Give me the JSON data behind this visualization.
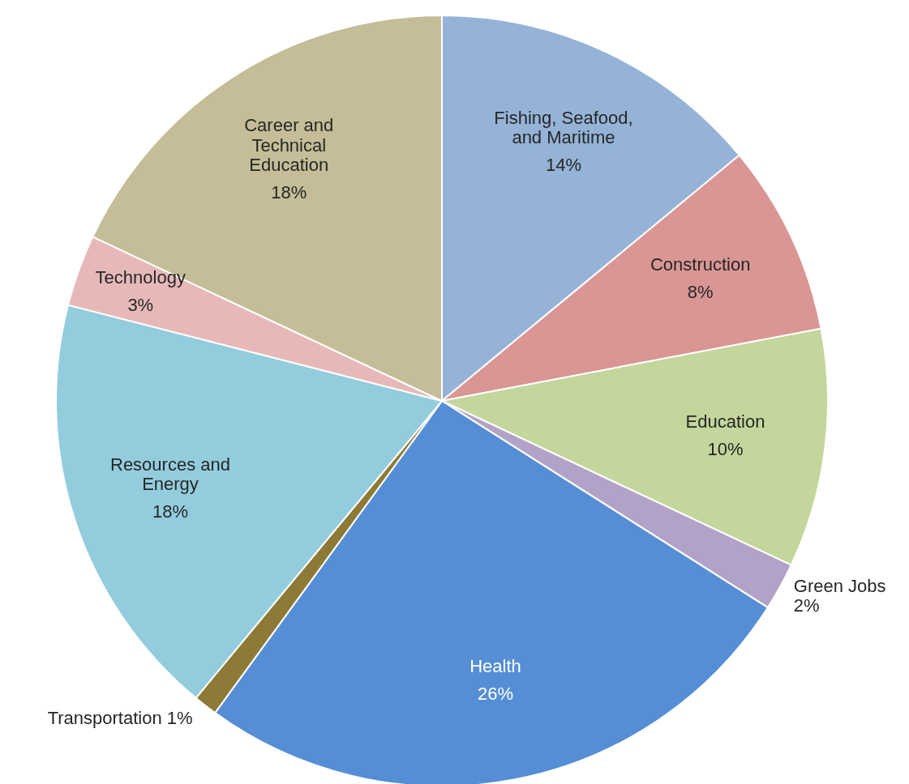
{
  "chart_data": {
    "type": "pie",
    "categories": [
      "Fishing, Seafood, and Maritime",
      "Construction",
      "Education",
      "Green Jobs",
      "Health",
      "Transportation",
      "Resources and Energy",
      "Technology",
      "Career and Technical Education"
    ],
    "values": [
      14,
      8,
      10,
      2,
      26,
      1,
      18,
      3,
      18
    ],
    "value_labels": [
      "14%",
      "8%",
      "10%",
      "2%",
      "26%",
      "1%",
      "18%",
      "3%",
      "18%"
    ],
    "colors": [
      "#95b3d7",
      "#d99694",
      "#c3d69b",
      "#b3a2c7",
      "#558ed5",
      "#8c7a36",
      "#93cddd",
      "#e6b9b8",
      "#c4bd97"
    ],
    "legend": false
  }
}
